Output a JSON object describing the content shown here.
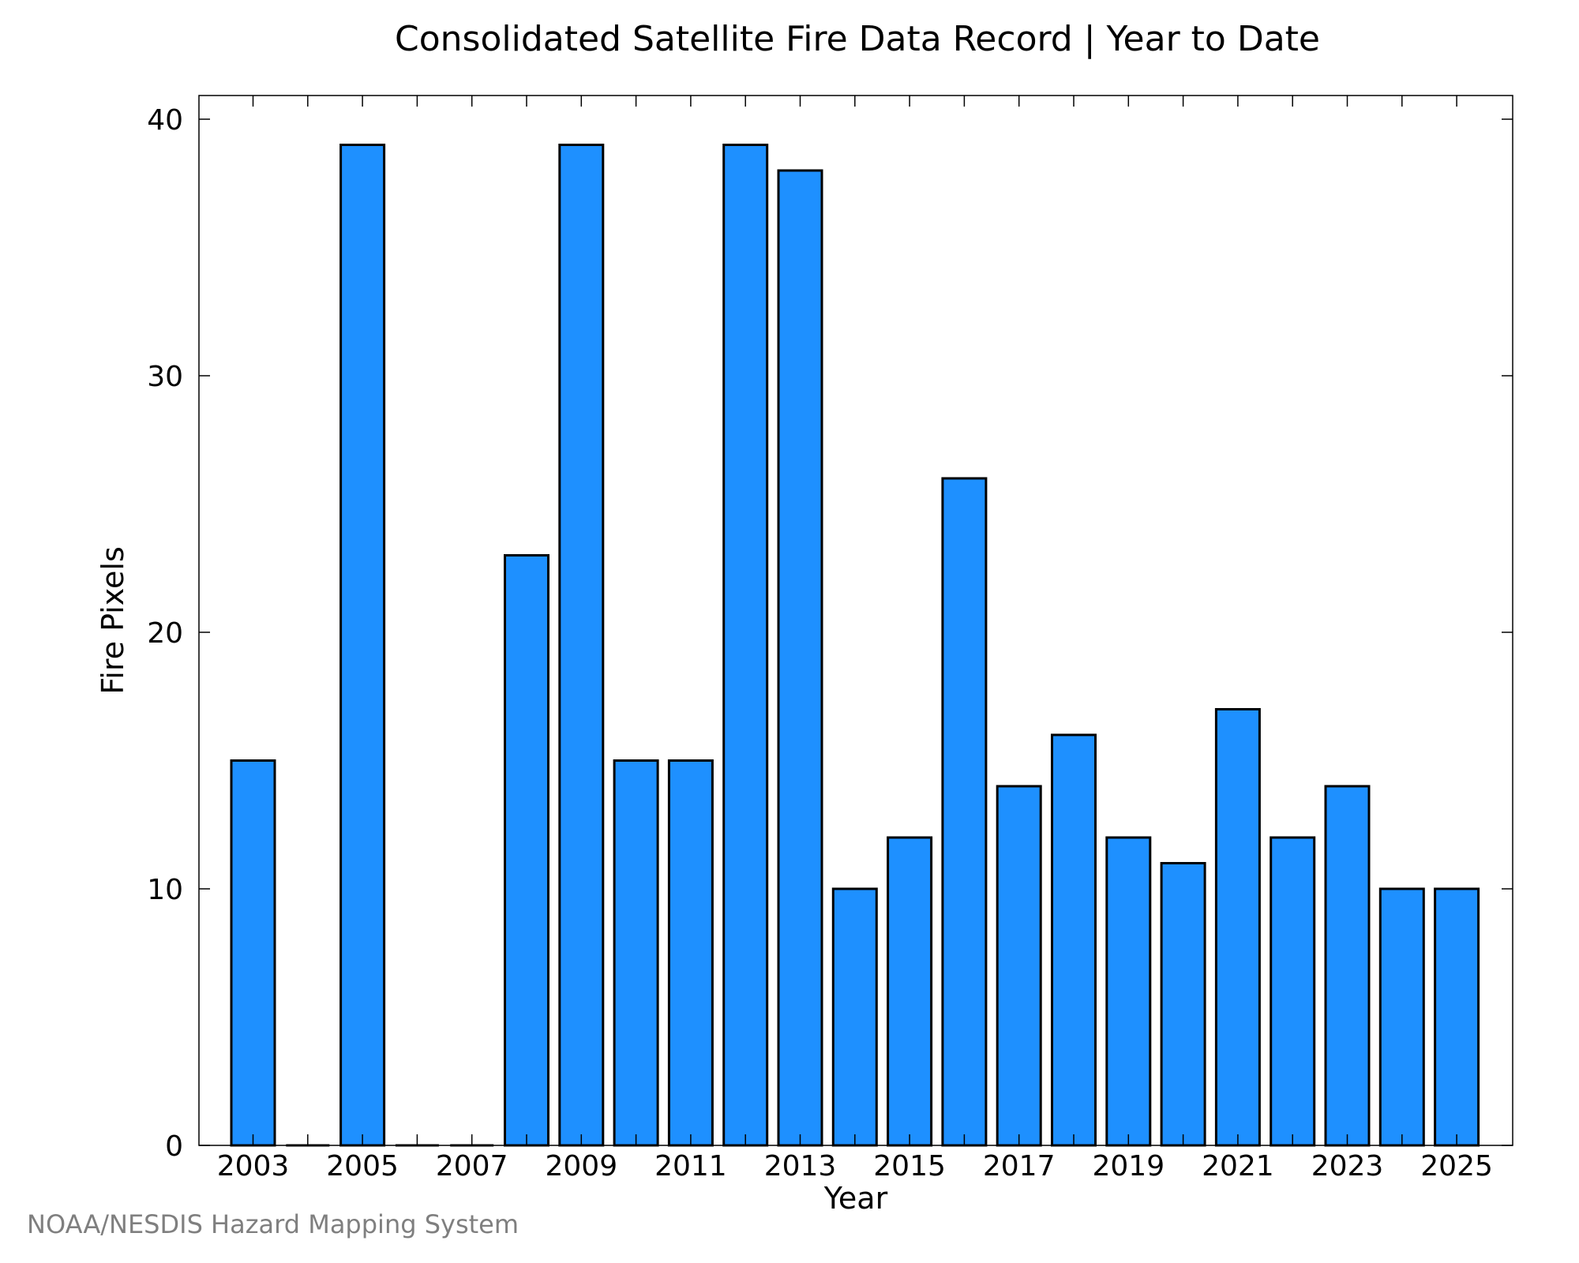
{
  "chart_data": {
    "type": "bar",
    "title": "Consolidated Satellite Fire Data Record | Year to Date",
    "xlabel": "Year",
    "ylabel": "Fire Pixels",
    "categories": [
      "2003",
      "2004",
      "2005",
      "2006",
      "2007",
      "2008",
      "2009",
      "2010",
      "2011",
      "2012",
      "2013",
      "2014",
      "2015",
      "2016",
      "2017",
      "2018",
      "2019",
      "2020",
      "2021",
      "2022",
      "2023",
      "2024",
      "2025"
    ],
    "values": [
      15,
      0,
      39,
      0,
      0,
      23,
      39,
      15,
      15,
      39,
      38,
      10,
      12,
      26,
      14,
      16,
      12,
      11,
      17,
      12,
      14,
      10,
      10
    ],
    "xtick_labels": [
      "2003",
      "2005",
      "2007",
      "2009",
      "2011",
      "2013",
      "2015",
      "2017",
      "2019",
      "2021",
      "2023",
      "2025"
    ],
    "ytick_labels": [
      "0",
      "10",
      "20",
      "30",
      "40"
    ],
    "ylim": [
      0,
      40
    ],
    "grid": false,
    "bar_color": "#1e90ff",
    "edge_color": "#000000"
  },
  "footer": {
    "credit": "NOAA/NESDIS Hazard Mapping System"
  }
}
